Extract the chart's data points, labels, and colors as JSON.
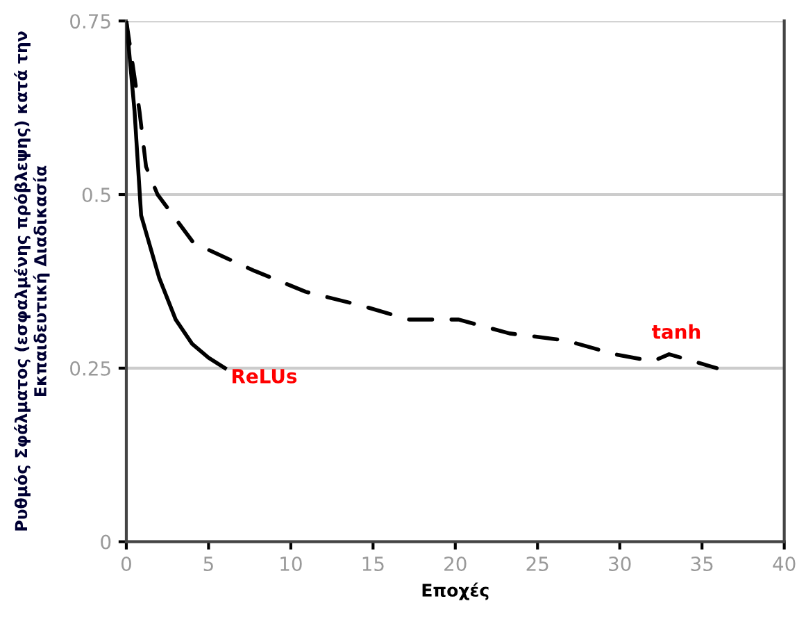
{
  "chart_data": {
    "type": "line",
    "xlabel": "Εποχές",
    "ylabel": "Ρυθμός Σφάλματος (εσφαλμένης πρόβλεψης) κατά την\nΕκπαιδευτική Διαδικασία",
    "series": [
      {
        "name": "ReLUs",
        "color": "#000000",
        "line_style": "solid",
        "x": [
          0,
          0.5,
          0.9,
          2,
          3,
          4,
          5,
          6
        ],
        "values": [
          0.75,
          0.62,
          0.47,
          0.38,
          0.32,
          0.285,
          0.265,
          0.25
        ]
      },
      {
        "name": "tanh",
        "color": "#000000",
        "line_style": "dashed",
        "x": [
          0,
          0.8,
          1.2,
          1.9,
          4.1,
          7.8,
          10.9,
          14.3,
          17.2,
          20.2,
          23.3,
          26.7,
          29.7,
          32,
          33,
          35.9
        ],
        "values": [
          0.75,
          0.62,
          0.54,
          0.5,
          0.43,
          0.39,
          0.36,
          0.34,
          0.32,
          0.32,
          0.3,
          0.29,
          0.27,
          0.26,
          0.27,
          0.25
        ]
      }
    ],
    "xlim": [
      0,
      40
    ],
    "xticks": [
      0,
      5,
      10,
      15,
      20,
      25,
      30,
      35,
      40
    ],
    "ylim": [
      0,
      0.75
    ],
    "yticks": [
      0,
      {
        "value": 0.25,
        "label": "0.25"
      },
      {
        "value": 0.5,
        "label": "0.5"
      },
      {
        "value": 0.75,
        "label": "0.75"
      }
    ],
    "grid": "y",
    "legend": false,
    "marker": "none"
  }
}
